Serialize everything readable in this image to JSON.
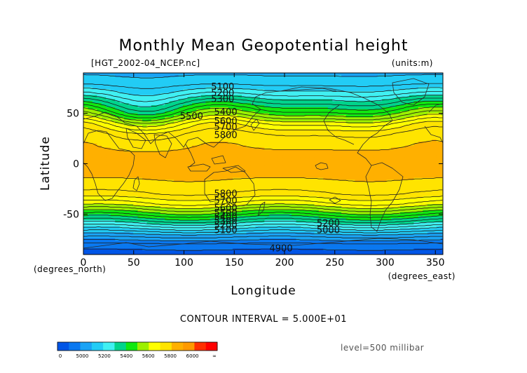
{
  "chart_data": {
    "type": "heatmap",
    "title": "Monthly Mean Geopotential height",
    "source_label": "[HGT_2002-04_NCEP.nc]",
    "units_label": "(units:m)",
    "xlabel": "Longitude",
    "ylabel": "Latitude",
    "x_unit_label": "(degrees_east)",
    "y_unit_label": "(degrees_north)",
    "xlim": [
      0,
      357.5
    ],
    "ylim": [
      -90,
      90
    ],
    "x_ticks": [
      0,
      50,
      100,
      150,
      200,
      250,
      300,
      350
    ],
    "y_ticks": [
      50,
      0,
      -50
    ],
    "contour_interval_label": "CONTOUR INTERVAL = 5.000E+01",
    "level_label": "level=500 millibar",
    "contour_labels": [
      {
        "text": "5100",
        "lon": 127,
        "lat": 76
      },
      {
        "text": "5200",
        "lon": 127,
        "lat": 70
      },
      {
        "text": "5300",
        "lon": 127,
        "lat": 64
      },
      {
        "text": "5400",
        "lon": 130,
        "lat": 51
      },
      {
        "text": "5500",
        "lon": 96,
        "lat": 47
      },
      {
        "text": "5600",
        "lon": 130,
        "lat": 42
      },
      {
        "text": "5700",
        "lon": 130,
        "lat": 36
      },
      {
        "text": "5800",
        "lon": 130,
        "lat": 28
      },
      {
        "text": "5800",
        "lon": 130,
        "lat": -30
      },
      {
        "text": "5700",
        "lon": 130,
        "lat": -37
      },
      {
        "text": "5600",
        "lon": 130,
        "lat": -44
      },
      {
        "text": "5500",
        "lon": 130,
        "lat": -49
      },
      {
        "text": "5400",
        "lon": 130,
        "lat": -53
      },
      {
        "text": "5300",
        "lon": 130,
        "lat": -57
      },
      {
        "text": "5200",
        "lon": 130,
        "lat": -61
      },
      {
        "text": "5100",
        "lon": 130,
        "lat": -66
      },
      {
        "text": "5200",
        "lon": 232,
        "lat": -59
      },
      {
        "text": "5000",
        "lon": 232,
        "lat": -66
      },
      {
        "text": "4900",
        "lon": 185,
        "lat": -84
      }
    ],
    "profile_lat": [
      90,
      80,
      70,
      60,
      50,
      40,
      30,
      20,
      10,
      0,
      -10,
      -20,
      -30,
      -40,
      -50,
      -60,
      -70,
      -80,
      -90
    ],
    "profile_height": [
      5140,
      5180,
      5280,
      5410,
      5540,
      5700,
      5800,
      5840,
      5860,
      5870,
      5860,
      5840,
      5790,
      5680,
      5510,
      5330,
      5140,
      4980,
      4920
    ],
    "colorbar": {
      "tick_labels": [
        "0",
        "5000",
        "5200",
        "5400",
        "5600",
        "5800",
        "6000",
        "∞"
      ],
      "colors": [
        "#0055e6",
        "#0a78f0",
        "#1aa3f5",
        "#22ccf5",
        "#40f0f2",
        "#00d48c",
        "#10e810",
        "#9cf000",
        "#ffff00",
        "#ffe400",
        "#ffb000",
        "#ff9a00",
        "#ff3000",
        "#ff0000"
      ]
    }
  }
}
